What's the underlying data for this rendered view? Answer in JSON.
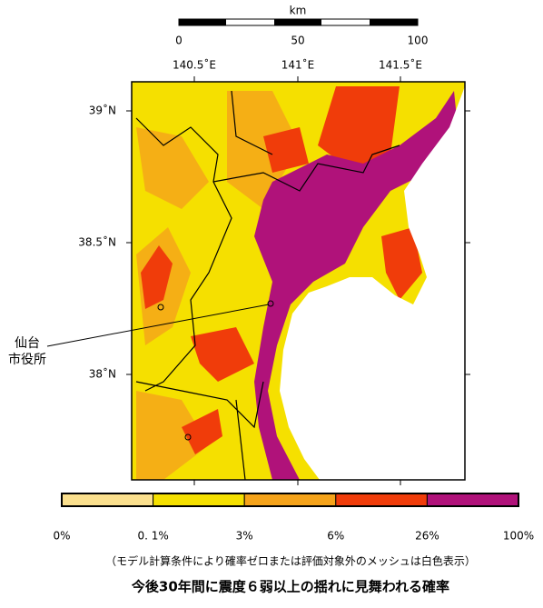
{
  "scale_bar": {
    "unit": "km",
    "labels": [
      "0",
      "50",
      "100"
    ]
  },
  "longitude_labels": [
    "140.5˚E",
    "141˚E",
    "141.5˚E"
  ],
  "latitude_labels": [
    "39˚N",
    "38.5˚N",
    "38˚N"
  ],
  "place_label": [
    "仙台",
    "市役所"
  ],
  "legend": {
    "labels": [
      "0%",
      "0. 1%",
      "3%",
      "6%",
      "26%",
      "100%"
    ],
    "colors": [
      "#fbe08e",
      "#f5e000",
      "#f5a31a",
      "#f03c0a",
      "#b0127a"
    ]
  },
  "note": "（モデル計算条件により確率ゼロまたは評価対象外のメッシュは白色表示）",
  "title": "今後30年間に震度６弱以上の揺れに見舞われる確率"
}
